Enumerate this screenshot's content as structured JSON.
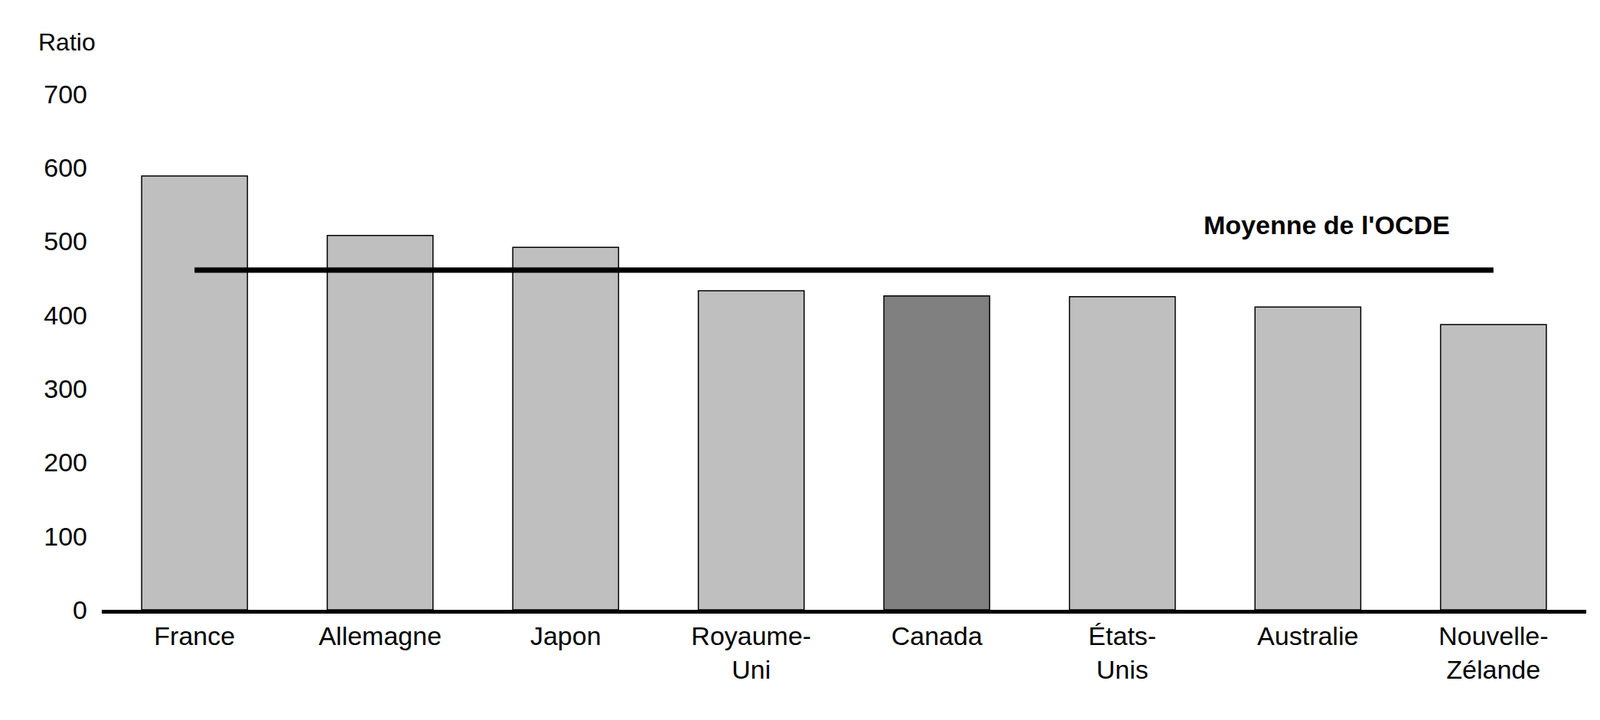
{
  "chart_data": {
    "type": "bar",
    "y_label": "Ratio",
    "categories": [
      "France",
      "Allemagne",
      "Japon",
      "Royaume-Uni",
      "Canada",
      "États-Unis",
      "Australie",
      "Nouvelle-Zélande"
    ],
    "values": [
      589,
      508,
      492,
      433,
      426,
      425,
      411,
      387
    ],
    "colors": [
      "#bfbfbf",
      "#bfbfbf",
      "#bfbfbf",
      "#bfbfbf",
      "#808080",
      "#bfbfbf",
      "#bfbfbf",
      "#bfbfbf"
    ],
    "average": {
      "label": "Moyenne de l'OCDE",
      "value": 461
    },
    "ylim": [
      0,
      700
    ],
    "yticks": [
      0,
      100,
      200,
      300,
      400,
      500,
      600,
      700
    ],
    "grid": false
  }
}
